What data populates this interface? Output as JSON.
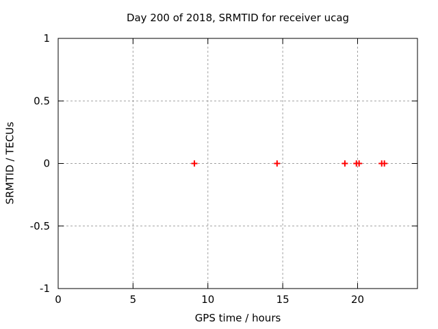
{
  "window": {
    "background": "#ffffff"
  },
  "chart_data": {
    "type": "scatter",
    "title": "Day 200 of 2018, SRMTID for receiver ucag",
    "xlabel": "GPS time / hours",
    "ylabel": "SRMTID / TECUs",
    "xlim": [
      0,
      24
    ],
    "ylim": [
      -1,
      1
    ],
    "x_tick_values": [
      0,
      5,
      10,
      15,
      20
    ],
    "x_tick_labels": [
      "0",
      "5",
      "10",
      "15",
      "20"
    ],
    "y_tick_values": [
      -1,
      -0.5,
      0,
      0.5,
      1
    ],
    "y_tick_labels": [
      "-1",
      "-0.5",
      "0",
      "0.5",
      "1"
    ],
    "grid": true,
    "legend": "none",
    "series": [
      {
        "name": "SRMTID",
        "marker": "plus",
        "color": "#ff0000",
        "points": [
          {
            "x": 9.1,
            "y": 0.0
          },
          {
            "x": 14.62,
            "y": 0.0
          },
          {
            "x": 19.15,
            "y": 0.0
          },
          {
            "x": 19.92,
            "y": 0.0
          },
          {
            "x": 20.1,
            "y": 0.0
          },
          {
            "x": 21.61,
            "y": 0.0
          },
          {
            "x": 21.79,
            "y": 0.0
          }
        ]
      }
    ],
    "colors": {
      "background": "#ffffff",
      "border": "#000000",
      "grid": "#a0a0a0",
      "text": "#000000",
      "marker": "#ff0000"
    }
  }
}
